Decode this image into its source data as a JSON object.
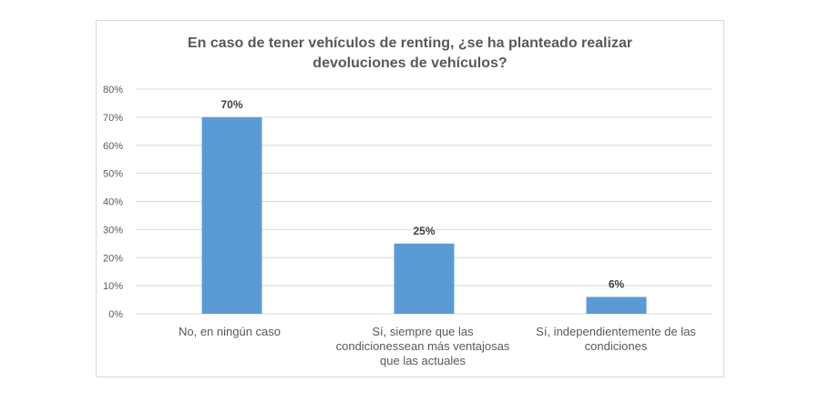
{
  "chart_data": {
    "type": "bar",
    "title_lines": [
      "En caso de tener vehículos de renting, ¿se ha planteado realizar",
      "devoluciones de vehículos?"
    ],
    "categories": [
      "No, en ningún caso",
      "Sí, siempre que las condicionessean más ventajosas que las actuales",
      "Sí, independientemente de las condiciones"
    ],
    "values": [
      70,
      25,
      6
    ],
    "data_labels": [
      "70%",
      "25%",
      "6%"
    ],
    "ylim": [
      0,
      80
    ],
    "yticks": [
      "0%",
      "10%",
      "20%",
      "30%",
      "40%",
      "50%",
      "60%",
      "70%",
      "80%"
    ],
    "bar_color": "#5b9bd5",
    "grid": true,
    "legend": "none"
  }
}
